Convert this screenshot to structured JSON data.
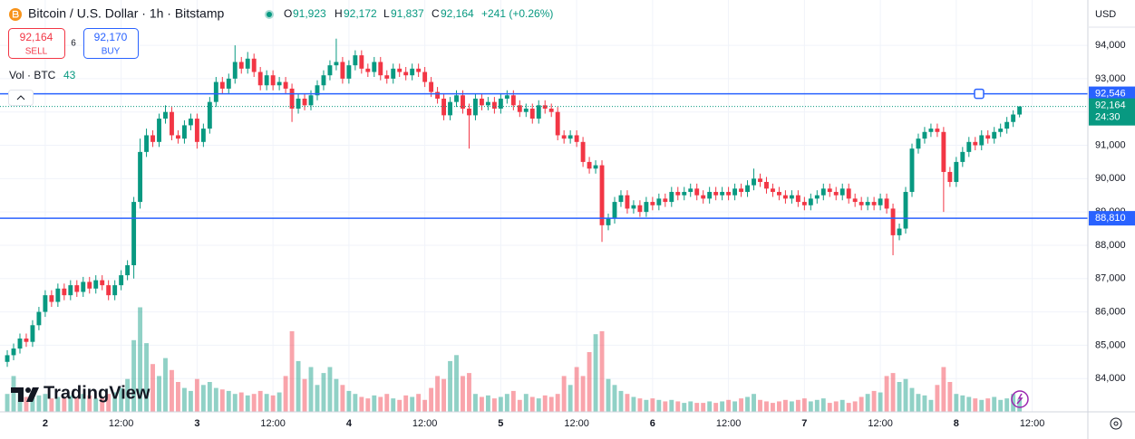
{
  "chart_data": {
    "type": "candlestick",
    "header": {
      "symbol": "Bitcoin / U.S. Dollar · 1h · Bitstamp",
      "open_label": "O",
      "open": "91,923",
      "high_label": "H",
      "high": "92,172",
      "low_label": "L",
      "low": "91,837",
      "close_label": "C",
      "close": "92,164",
      "change": "+241 (+0.26%)"
    },
    "trade": {
      "sell_price": "92,164",
      "sell_label": "SELL",
      "spread": "6",
      "buy_price": "92,170",
      "buy_label": "BUY"
    },
    "volume_label": "Vol · BTC",
    "currency": "USD",
    "watermark": "TradingView",
    "up_color": "#089981",
    "down_color": "#f23645",
    "line_color": "#2962ff",
    "grid": true,
    "open": [
      84500,
      84700,
      84900,
      85200,
      85100,
      85600,
      86000,
      86500,
      86300,
      86700,
      86500,
      86800,
      86600,
      86900,
      86700,
      86950,
      86800,
      86500,
      86800,
      87100,
      87400,
      89300,
      90800,
      91300,
      91100,
      91800,
      92000,
      91300,
      91200,
      91600,
      91800,
      91100,
      91500,
      92300,
      92900,
      92700,
      93000,
      93500,
      93300,
      93600,
      93200,
      92800,
      93100,
      92800,
      92900,
      92700,
      92100,
      92400,
      92200,
      92500,
      92800,
      93100,
      93400,
      93500,
      93000,
      93400,
      93700,
      93300,
      93200,
      93500,
      93100,
      93000,
      93300,
      93200,
      93100,
      93300,
      93200,
      92900,
      92600,
      92400,
      91900,
      92300,
      92500,
      92100,
      91900,
      92400,
      92200,
      92300,
      92100,
      92400,
      92500,
      92200,
      92000,
      92100,
      91800,
      92200,
      92100,
      92000,
      91300,
      91200,
      91300,
      91100,
      90500,
      90300,
      90400,
      88600,
      88800,
      89300,
      89500,
      89100,
      89200,
      89000,
      89300,
      89200,
      89400,
      89300,
      89600,
      89500,
      89600,
      89700,
      89500,
      89400,
      89600,
      89500,
      89600,
      89500,
      89700,
      89600,
      89800,
      90000,
      89900,
      89700,
      89600,
      89500,
      89400,
      89500,
      89300,
      89200,
      89400,
      89500,
      89700,
      89600,
      89500,
      89700,
      89400,
      89300,
      89200,
      89300,
      89200,
      89400,
      89100,
      88300,
      88500,
      89600,
      90900,
      91200,
      91400,
      91500,
      91400,
      90200,
      89900,
      90500,
      90800,
      91100,
      91000,
      91300,
      91200,
      91400,
      91500,
      91700,
      91923
    ],
    "high": [
      84850,
      85050,
      85350,
      85350,
      85750,
      86150,
      86650,
      86650,
      86850,
      86850,
      86950,
      86950,
      87050,
      87050,
      87100,
      87100,
      86950,
      86950,
      87250,
      87550,
      89450,
      91200,
      91500,
      91450,
      91950,
      92200,
      92150,
      91450,
      91750,
      91950,
      91950,
      91650,
      92450,
      93050,
      93050,
      93150,
      94000,
      93650,
      93800,
      93750,
      93350,
      93250,
      93250,
      93050,
      93050,
      92850,
      92550,
      92550,
      92650,
      92950,
      93250,
      93550,
      94200,
      93650,
      93550,
      93850,
      93850,
      93450,
      93650,
      93650,
      93250,
      93450,
      93450,
      93350,
      93450,
      93450,
      93350,
      93050,
      92750,
      92550,
      92450,
      92650,
      92650,
      92250,
      92550,
      92550,
      92450,
      92450,
      92550,
      92650,
      92650,
      92350,
      92250,
      92250,
      92350,
      92350,
      92250,
      92150,
      91450,
      91450,
      91450,
      91250,
      90650,
      90550,
      90550,
      88950,
      89450,
      89650,
      89650,
      89350,
      89350,
      89450,
      89450,
      89550,
      89550,
      89750,
      89750,
      89750,
      89850,
      89850,
      89650,
      89750,
      89750,
      89750,
      89750,
      89850,
      89850,
      89950,
      90300,
      90150,
      90050,
      89850,
      89750,
      89650,
      89650,
      89650,
      89450,
      89550,
      89650,
      89850,
      89850,
      89750,
      89850,
      89850,
      89550,
      89450,
      89450,
      89450,
      89550,
      89550,
      89250,
      88650,
      89750,
      91050,
      91350,
      91550,
      91650,
      91650,
      91550,
      90350,
      90650,
      90950,
      91250,
      91250,
      91450,
      91450,
      91550,
      91650,
      91850,
      92050,
      92172
    ],
    "low": [
      84350,
      84550,
      84750,
      84950,
      84950,
      85450,
      85850,
      86150,
      86150,
      86350,
      86350,
      86450,
      86450,
      86550,
      86550,
      86650,
      86350,
      86350,
      86650,
      86950,
      87000,
      89100,
      90650,
      90950,
      90950,
      91650,
      91150,
      91050,
      91050,
      91450,
      90900,
      90950,
      91350,
      92150,
      92550,
      92550,
      92850,
      93150,
      93150,
      93050,
      92650,
      92650,
      92650,
      92650,
      92550,
      91700,
      91950,
      92050,
      92050,
      92350,
      92650,
      92950,
      93250,
      92850,
      92850,
      93250,
      93150,
      93050,
      93050,
      92950,
      92850,
      92850,
      93050,
      92950,
      92950,
      93050,
      92750,
      92450,
      92250,
      91750,
      91750,
      92150,
      91950,
      90900,
      91750,
      92050,
      92050,
      91950,
      91950,
      92250,
      92050,
      91850,
      91850,
      91650,
      91650,
      91950,
      91850,
      91150,
      91050,
      91050,
      90950,
      90350,
      90150,
      90150,
      88100,
      88450,
      88650,
      89150,
      88950,
      88950,
      88850,
      88850,
      89050,
      89050,
      89150,
      89150,
      89350,
      89350,
      89450,
      89350,
      89250,
      89250,
      89350,
      89350,
      89350,
      89350,
      89450,
      89450,
      89650,
      89750,
      89550,
      89450,
      89350,
      89250,
      89250,
      89150,
      89050,
      89050,
      89250,
      89350,
      89450,
      89350,
      89350,
      89250,
      89150,
      89050,
      89050,
      89050,
      89050,
      88950,
      87700,
      88150,
      88350,
      89450,
      90750,
      91050,
      91250,
      91250,
      89000,
      89750,
      89750,
      90350,
      90650,
      90850,
      90850,
      91050,
      91050,
      91250,
      91350,
      91550,
      91837
    ],
    "close": [
      84700,
      84900,
      85200,
      85100,
      85600,
      86000,
      86500,
      86300,
      86700,
      86500,
      86800,
      86600,
      86900,
      86700,
      86950,
      86800,
      86500,
      86800,
      87100,
      87400,
      89300,
      90800,
      91300,
      91100,
      91800,
      92000,
      91300,
      91200,
      91600,
      91800,
      91100,
      91500,
      92300,
      92900,
      92700,
      93000,
      93500,
      93300,
      93600,
      93200,
      92800,
      93100,
      92800,
      92900,
      92700,
      92100,
      92400,
      92200,
      92500,
      92800,
      93100,
      93400,
      93500,
      93000,
      93400,
      93700,
      93300,
      93200,
      93500,
      93100,
      93000,
      93300,
      93200,
      93100,
      93300,
      93200,
      92900,
      92600,
      92400,
      91900,
      92300,
      92500,
      92100,
      91900,
      92400,
      92200,
      92300,
      92100,
      92400,
      92500,
      92200,
      92000,
      92100,
      91800,
      92200,
      92100,
      92000,
      91300,
      91200,
      91300,
      91100,
      90500,
      90300,
      90400,
      88600,
      88800,
      89300,
      89500,
      89100,
      89200,
      89000,
      89300,
      89200,
      89400,
      89300,
      89600,
      89500,
      89600,
      89700,
      89500,
      89400,
      89600,
      89500,
      89600,
      89500,
      89700,
      89600,
      89800,
      90000,
      89900,
      89700,
      89600,
      89500,
      89400,
      89500,
      89300,
      89200,
      89400,
      89500,
      89700,
      89600,
      89500,
      89700,
      89400,
      89300,
      89200,
      89300,
      89200,
      89400,
      89100,
      88300,
      88500,
      89600,
      90900,
      91200,
      91400,
      91500,
      91400,
      90200,
      89900,
      90500,
      90800,
      91100,
      91000,
      91300,
      91200,
      91400,
      91500,
      91700,
      91923,
      92164
    ],
    "volume": [
      60,
      120,
      70,
      50,
      45,
      55,
      60,
      45,
      50,
      45,
      55,
      50,
      60,
      55,
      45,
      50,
      60,
      65,
      80,
      110,
      240,
      350,
      230,
      160,
      120,
      180,
      140,
      100,
      80,
      70,
      110,
      90,
      100,
      80,
      75,
      70,
      60,
      65,
      55,
      60,
      70,
      60,
      55,
      65,
      120,
      270,
      170,
      110,
      150,
      90,
      130,
      150,
      110,
      90,
      70,
      60,
      50,
      45,
      55,
      50,
      60,
      45,
      40,
      55,
      50,
      60,
      40,
      80,
      120,
      110,
      170,
      190,
      120,
      130,
      60,
      50,
      55,
      45,
      50,
      60,
      70,
      40,
      60,
      50,
      45,
      55,
      50,
      60,
      120,
      90,
      150,
      120,
      200,
      260,
      270,
      110,
      90,
      70,
      60,
      50,
      45,
      40,
      45,
      40,
      35,
      40,
      35,
      30,
      35,
      30,
      30,
      35,
      30,
      35,
      40,
      35,
      45,
      50,
      60,
      40,
      35,
      30,
      35,
      40,
      35,
      40,
      45,
      35,
      40,
      45,
      30,
      35,
      40,
      30,
      35,
      50,
      60,
      70,
      65,
      120,
      130,
      100,
      110,
      80,
      60,
      55,
      40,
      90,
      150,
      100,
      60,
      55,
      50,
      45,
      40,
      45,
      50,
      40,
      45,
      60,
      43
    ],
    "xlim": [
      -1.15,
      170.8
    ],
    "xticks": [
      {
        "value": 6,
        "label": "2"
      },
      {
        "value": 18,
        "label": "12:00"
      },
      {
        "value": 30,
        "label": "3"
      },
      {
        "value": 42,
        "label": "12:00"
      },
      {
        "value": 54,
        "label": "4"
      },
      {
        "value": 66,
        "label": "12:00"
      },
      {
        "value": 78,
        "label": "5"
      },
      {
        "value": 90,
        "label": "12:00"
      },
      {
        "value": 102,
        "label": "6"
      },
      {
        "value": 114,
        "label": "12:00"
      },
      {
        "value": 126,
        "label": "7"
      },
      {
        "value": 138,
        "label": "12:00"
      },
      {
        "value": 150,
        "label": "8"
      },
      {
        "value": 162,
        "label": "12:00"
      }
    ],
    "ylim": [
      83000,
      95360
    ],
    "yticks": [
      {
        "value": 84000,
        "label": "84,000"
      },
      {
        "value": 85000,
        "label": "85,000"
      },
      {
        "value": 86000,
        "label": "86,000"
      },
      {
        "value": 87000,
        "label": "87,000"
      },
      {
        "value": 88000,
        "label": "88,000"
      },
      {
        "value": 89000,
        "label": "89,000"
      },
      {
        "value": 90000,
        "label": "90,000"
      },
      {
        "value": 91000,
        "label": "91,000"
      },
      {
        "value": 92000,
        "label": "92,000"
      },
      {
        "value": 93000,
        "label": "93,000"
      },
      {
        "value": 94000,
        "label": "94,000"
      }
    ],
    "hlines": [
      {
        "value": 92546,
        "label": "92,546"
      },
      {
        "value": 88810,
        "label": "88,810"
      }
    ],
    "last_price": {
      "value": 92164,
      "label": "92,164",
      "countdown": "24:30"
    }
  }
}
